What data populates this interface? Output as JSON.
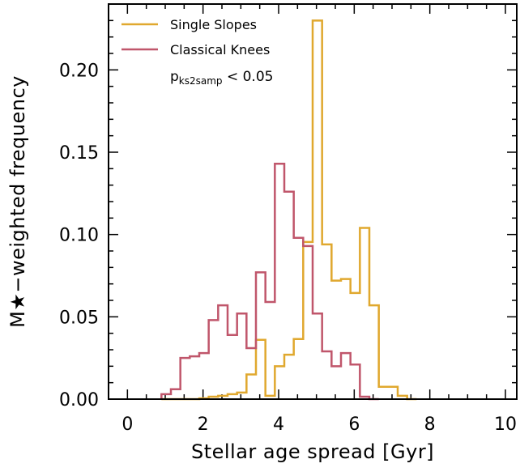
{
  "chart_data": {
    "type": "histogram-step",
    "xlabel": "Stellar age spread [Gyr]",
    "ylabel": "M★−weighted frequency",
    "xlim": [
      -0.5,
      10.3
    ],
    "ylim": [
      0,
      0.24
    ],
    "xticks": [
      0,
      2,
      4,
      6,
      8,
      10
    ],
    "xtick_labels": [
      "0",
      "2",
      "4",
      "6",
      "8",
      "10"
    ],
    "yticks": [
      0.0,
      0.05,
      0.1,
      0.15,
      0.2
    ],
    "ytick_labels": [
      "0.00",
      "0.05",
      "0.10",
      "0.15",
      "0.20"
    ],
    "grid": false,
    "legend_position": "top-left",
    "series": [
      {
        "name": "Single Slopes",
        "color": "#e0a82e",
        "edges": [
          0.9,
          1.15,
          1.4,
          1.65,
          1.9,
          2.15,
          2.4,
          2.65,
          2.9,
          3.15,
          3.4,
          3.65,
          3.9,
          4.15,
          4.4,
          4.65,
          4.9,
          5.15,
          5.4,
          5.65,
          5.9,
          6.15,
          6.4,
          6.65,
          6.9,
          7.15,
          7.4,
          7.65
        ],
        "values": [
          0.0,
          0.0,
          0.0,
          0.0,
          0.0005,
          0.0015,
          0.002,
          0.003,
          0.004,
          0.015,
          0.036,
          0.002,
          0.02,
          0.027,
          0.0365,
          0.0955,
          0.23,
          0.094,
          0.072,
          0.073,
          0.0645,
          0.104,
          0.057,
          0.0075,
          0.0075,
          0.002,
          0.0
        ]
      },
      {
        "name": "Classical Knees",
        "color": "#c0566b",
        "edges": [
          0.9,
          1.15,
          1.4,
          1.65,
          1.9,
          2.15,
          2.4,
          2.65,
          2.9,
          3.15,
          3.4,
          3.65,
          3.9,
          4.15,
          4.4,
          4.65,
          4.9,
          5.15,
          5.4,
          5.65,
          5.9,
          6.15,
          6.4,
          6.65
        ],
        "values": [
          0.003,
          0.006,
          0.025,
          0.026,
          0.028,
          0.048,
          0.057,
          0.039,
          0.052,
          0.031,
          0.077,
          0.059,
          0.143,
          0.126,
          0.098,
          0.093,
          0.052,
          0.029,
          0.02,
          0.028,
          0.021,
          0.0015,
          0.0
        ]
      }
    ],
    "annotation": {
      "main": "p",
      "sub": "ks2samp",
      "rest": " < 0.05"
    }
  }
}
